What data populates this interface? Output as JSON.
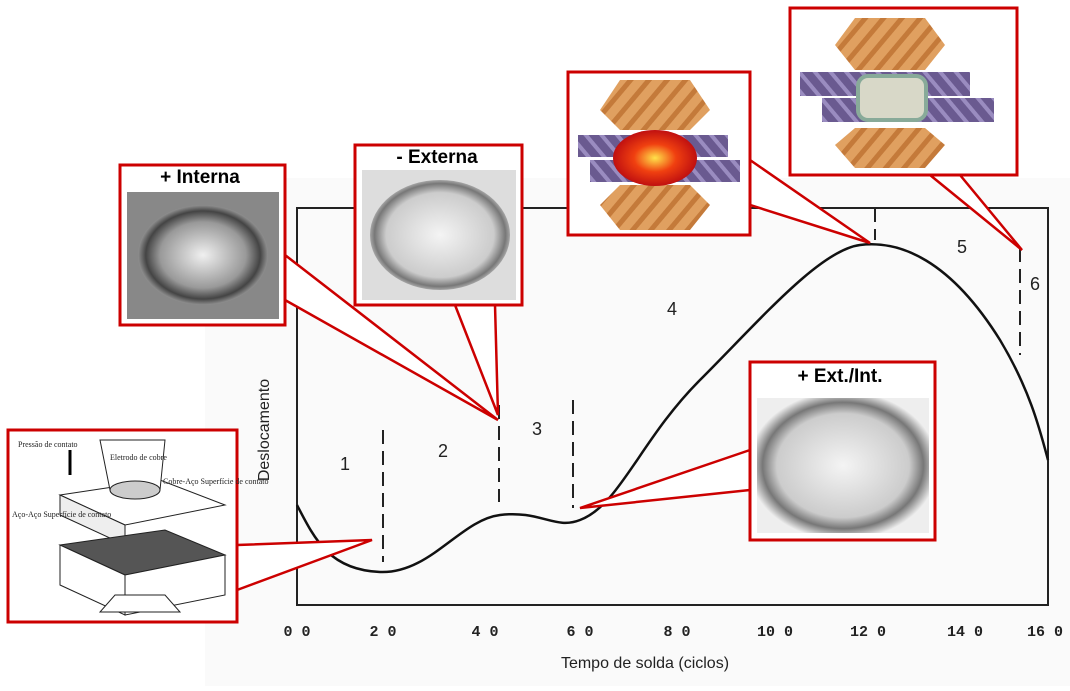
{
  "axes": {
    "y_label": "Deslocamento",
    "x_label": "Tempo de solda (ciclos)",
    "x_ticks": [
      "0 0",
      "2 0",
      "4 0",
      "6 0",
      "8 0",
      "10 0",
      "12 0",
      "14 0",
      "16 0"
    ]
  },
  "regions": [
    "1",
    "2",
    "3",
    "4",
    "5",
    "6"
  ],
  "callouts": {
    "interna": "+ Interna",
    "externa": "- Externa",
    "ext_int": "+ Ext./Int."
  },
  "inset": {
    "pressure": "Pressão de contato",
    "electrode": "Eletrodo de cobre",
    "copper_steel": "Cobre-Aço Superfície de contato",
    "steel_steel": "Aço-Aço Superfície de contato"
  }
}
